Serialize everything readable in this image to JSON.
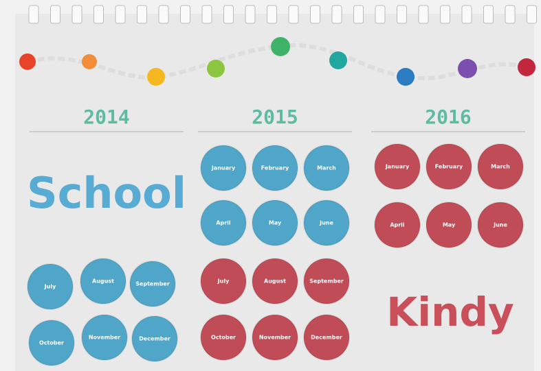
{
  "calendar": {
    "columns": [
      {
        "year": "2014",
        "label": "School",
        "label_color": "#58acd4",
        "months": [
          {
            "name": "July",
            "color": "#4fa6c8"
          },
          {
            "name": "August",
            "color": "#4fa6c8"
          },
          {
            "name": "September",
            "color": "#4fa6c8"
          },
          {
            "name": "October",
            "color": "#4fa6c8"
          },
          {
            "name": "November",
            "color": "#4fa6c8"
          },
          {
            "name": "December",
            "color": "#4fa6c8"
          }
        ]
      },
      {
        "year": "2015",
        "months": [
          {
            "name": "January",
            "color": "#4fa6c8"
          },
          {
            "name": "February",
            "color": "#4fa6c8"
          },
          {
            "name": "March",
            "color": "#4fa6c8"
          },
          {
            "name": "April",
            "color": "#4fa6c8"
          },
          {
            "name": "May",
            "color": "#4fa6c8"
          },
          {
            "name": "June",
            "color": "#4fa6c8"
          },
          {
            "name": "July",
            "color": "#c04c57"
          },
          {
            "name": "August",
            "color": "#c04c57"
          },
          {
            "name": "September",
            "color": "#c04c57"
          },
          {
            "name": "October",
            "color": "#c04c57"
          },
          {
            "name": "November",
            "color": "#c04c57"
          },
          {
            "name": "December",
            "color": "#c04c57"
          }
        ]
      },
      {
        "year": "2016",
        "label": "Kindy",
        "label_color": "#c9505b",
        "months": [
          {
            "name": "January",
            "color": "#c04c57"
          },
          {
            "name": "February",
            "color": "#c04c57"
          },
          {
            "name": "March",
            "color": "#c04c57"
          },
          {
            "name": "April",
            "color": "#c04c57"
          },
          {
            "name": "May",
            "color": "#c04c57"
          },
          {
            "name": "June",
            "color": "#c04c57"
          }
        ]
      }
    ]
  }
}
